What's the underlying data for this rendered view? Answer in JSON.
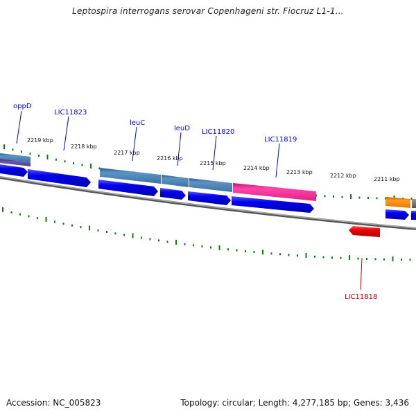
{
  "title": "Leptospira interrogans serovar Copenhageni str. Fiocruz L1-1...",
  "footer": {
    "accession": "Accession: NC_005823",
    "summary": "Topology: circular; Length: 4,277,185 bp; Genes: 3,436"
  },
  "scale_labels": [
    "2219 kbp",
    "2218 kbp",
    "2217 kbp",
    "2216 kbp",
    "2215 kbp",
    "2214 kbp",
    "2213 kbp",
    "2212 kbp",
    "2211 kbp"
  ],
  "gene_labels": [
    {
      "text": "oppD",
      "color": "#0000cc"
    },
    {
      "text": "LIC11823",
      "color": "#0000cc"
    },
    {
      "text": "leuC",
      "color": "#0000cc"
    },
    {
      "text": "leuD",
      "color": "#0000cc"
    },
    {
      "text": "LIC11820",
      "color": "#0000cc"
    },
    {
      "text": "LIC11819",
      "color": "#0000cc"
    },
    {
      "text": "LIC11818",
      "color": "#cc0000"
    }
  ],
  "colors": {
    "forward_cds": "#0000ee",
    "reverse_cds": "#ee0000",
    "cog_steelblue": "#4f86b8",
    "cog_purple": "#5a4a9a",
    "cog_pink": "#ee3399",
    "cog_orange": "#ee8800",
    "cog_gray": "#777777",
    "backbone": "#888888",
    "ticks": "#117711"
  }
}
